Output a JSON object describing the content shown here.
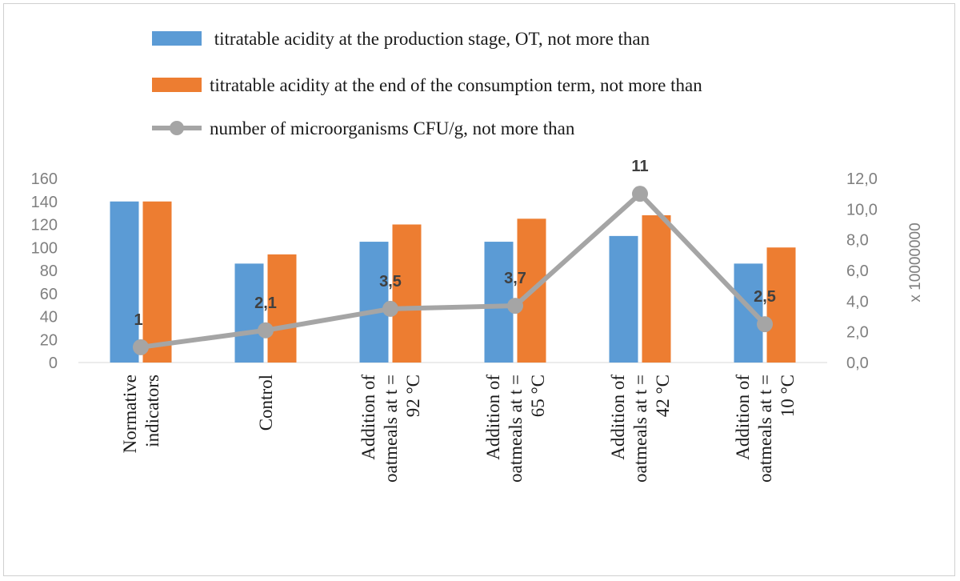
{
  "chart_data": {
    "type": "bar",
    "categories": [
      [
        "Normative",
        "indicators"
      ],
      [
        "Control"
      ],
      [
        "Addition of",
        "oatmeals at t =",
        "92 °C"
      ],
      [
        "Addition of",
        "oatmeals at t =",
        "65 °C"
      ],
      [
        "Addition of",
        "oatmeals at t =",
        "42 °C"
      ],
      [
        "Addition of",
        "oatmeals at t =",
        "10 °C"
      ]
    ],
    "series": [
      {
        "name": " titratable acidity at the production stage, OT, not more than",
        "type": "bar",
        "axis": "left",
        "color": "#5b9bd5",
        "values": [
          140,
          86,
          105,
          105,
          110,
          86
        ]
      },
      {
        "name": "titratable acidity at the end of the consumption term, not more than",
        "type": "bar",
        "axis": "left",
        "color": "#ed7d31",
        "values": [
          140,
          94,
          120,
          125,
          128,
          100
        ]
      },
      {
        "name": "number of microorganisms CFU/g, not more than",
        "type": "line",
        "axis": "right",
        "color": "#a5a5a5",
        "values": [
          1,
          2.1,
          3.5,
          3.7,
          11,
          2.5
        ],
        "data_labels": [
          "1",
          "2,1",
          "3,5",
          "3,7",
          "11",
          "2,5"
        ]
      }
    ],
    "y_left": {
      "range": [
        0,
        160
      ],
      "ticks": [
        0,
        20,
        40,
        60,
        80,
        100,
        120,
        140,
        160
      ],
      "tick_labels": [
        "0",
        "20",
        "40",
        "60",
        "80",
        "100",
        "120",
        "140",
        "160"
      ]
    },
    "y_right": {
      "range": [
        0,
        12
      ],
      "ticks": [
        0,
        2,
        4,
        6,
        8,
        10,
        12
      ],
      "tick_labels": [
        "0,0",
        "2,0",
        "4,0",
        "6,0",
        "8,0",
        "10,0",
        "12,0"
      ],
      "label": "x 10000000"
    },
    "grid": false,
    "legend_position": "top"
  }
}
